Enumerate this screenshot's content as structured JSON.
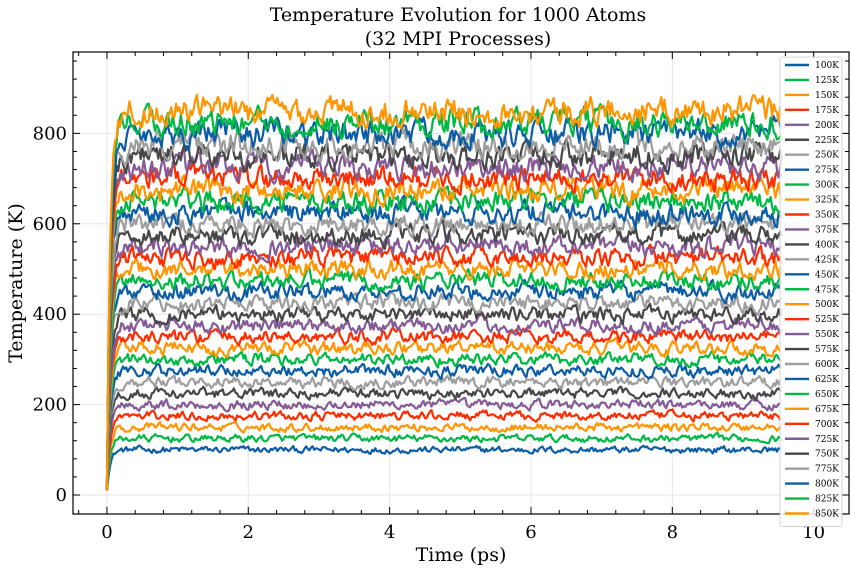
{
  "chart_data": {
    "type": "line",
    "title": [
      "Temperature Evolution for 1000 Atoms",
      "(32 MPI Processes)"
    ],
    "xlabel": "Time (ps)",
    "ylabel": "Temperature (K)",
    "xlim": [
      -0.48,
      10.5
    ],
    "ylim": [
      -42,
      980
    ],
    "xticks": [
      0,
      2,
      4,
      6,
      8,
      10
    ],
    "yticks": [
      0,
      200,
      400,
      600,
      800
    ],
    "x_start": 0,
    "x_end": 9.55,
    "grid": true,
    "legend_position": "right, inside",
    "series": [
      {
        "name": "100K",
        "plateau": 100,
        "color": "#0C5DA5"
      },
      {
        "name": "125K",
        "plateau": 125,
        "color": "#00B945"
      },
      {
        "name": "150K",
        "plateau": 150,
        "color": "#FF9500"
      },
      {
        "name": "175K",
        "plateau": 175,
        "color": "#FF2C00"
      },
      {
        "name": "200K",
        "plateau": 200,
        "color": "#845B97"
      },
      {
        "name": "225K",
        "plateau": 225,
        "color": "#474747"
      },
      {
        "name": "250K",
        "plateau": 250,
        "color": "#9E9E9E"
      },
      {
        "name": "275K",
        "plateau": 275,
        "color": "#0C5DA5"
      },
      {
        "name": "300K",
        "plateau": 300,
        "color": "#00B945"
      },
      {
        "name": "325K",
        "plateau": 325,
        "color": "#FF9500"
      },
      {
        "name": "350K",
        "plateau": 350,
        "color": "#FF2C00"
      },
      {
        "name": "375K",
        "plateau": 375,
        "color": "#845B97"
      },
      {
        "name": "400K",
        "plateau": 400,
        "color": "#474747"
      },
      {
        "name": "425K",
        "plateau": 425,
        "color": "#9E9E9E"
      },
      {
        "name": "450K",
        "plateau": 450,
        "color": "#0C5DA5"
      },
      {
        "name": "475K",
        "plateau": 475,
        "color": "#00B945"
      },
      {
        "name": "500K",
        "plateau": 500,
        "color": "#FF9500"
      },
      {
        "name": "525K",
        "plateau": 525,
        "color": "#FF2C00"
      },
      {
        "name": "550K",
        "plateau": 550,
        "color": "#845B97"
      },
      {
        "name": "575K",
        "plateau": 575,
        "color": "#474747"
      },
      {
        "name": "600K",
        "plateau": 600,
        "color": "#9E9E9E"
      },
      {
        "name": "625K",
        "plateau": 625,
        "color": "#0C5DA5"
      },
      {
        "name": "650K",
        "plateau": 650,
        "color": "#00B945"
      },
      {
        "name": "675K",
        "plateau": 675,
        "color": "#FF9500"
      },
      {
        "name": "700K",
        "plateau": 700,
        "color": "#FF2C00"
      },
      {
        "name": "725K",
        "plateau": 725,
        "color": "#845B97"
      },
      {
        "name": "750K",
        "plateau": 750,
        "color": "#474747"
      },
      {
        "name": "775K",
        "plateau": 775,
        "color": "#9E9E9E"
      },
      {
        "name": "800K",
        "plateau": 800,
        "color": "#0C5DA5"
      },
      {
        "name": "825K",
        "plateau": 825,
        "color": "#00B945"
      },
      {
        "name": "850K",
        "plateau": 850,
        "color": "#FF9500"
      }
    ]
  }
}
